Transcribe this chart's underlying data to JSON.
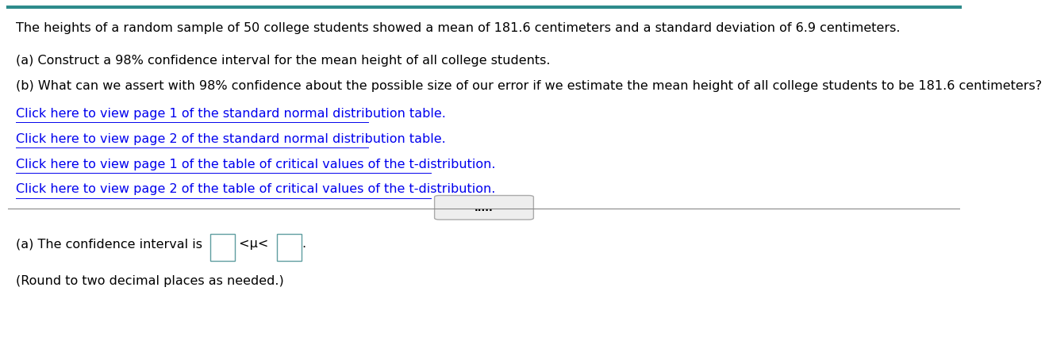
{
  "bg_color": "#ffffff",
  "top_border_color": "#2E8B8B",
  "separator_color": "#888888",
  "header_text": "The heights of a random sample of 50 college students showed a mean of 181.6 centimeters and a standard deviation of 6.9 centimeters.",
  "line_a": "(a) Construct a 98% confidence interval for the mean height of all college students.",
  "line_b": "(b) What can we assert with 98% confidence about the possible size of our error if we estimate the mean height of all college students to be 181.6 centimeters?",
  "link1": "Click here to view page 1 of the standard normal distribution table.",
  "link2": "Click here to view page 2 of the standard normal distribution table.",
  "link3": "Click here to view page 1 of the table of critical values of the t-distribution.",
  "link4": "Click here to view page 2 of the table of critical values of the t-distribution.",
  "dots": ".....",
  "answer_line1_prefix": "(a) The confidence interval is ",
  "answer_line1_mu": " <μ< ",
  "answer_line1_suffix": ".",
  "answer_line2": "(Round to two decimal places as needed.)",
  "link_color": "#0000EE",
  "text_color": "#000000",
  "box_edge_color": "#5F9EA0",
  "font_size": 11.5,
  "link_font_size": 11.5,
  "dots_box_edge": "#aaaaaa",
  "dots_box_face": "#eeeeee"
}
